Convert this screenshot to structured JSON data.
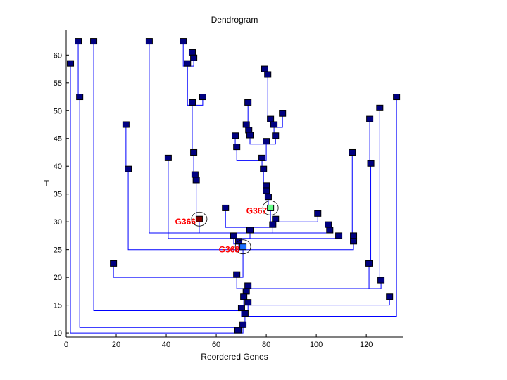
{
  "chart_data": {
    "type": "dendrogram",
    "title": "Dendrogram",
    "xlabel": "Reordered Genes",
    "ylabel": "T",
    "xlim": [
      0,
      134.6
    ],
    "ylim": [
      9.25,
      64.6
    ],
    "xticks": [
      0,
      20,
      40,
      60,
      80,
      100,
      120
    ],
    "yticks": [
      10,
      15,
      20,
      25,
      30,
      35,
      40,
      45,
      50,
      55,
      60
    ],
    "grid": false,
    "colors": {
      "line": "#0000ff",
      "node": "#000080",
      "node_border": "#000000",
      "highlight_label": "#ff0000"
    },
    "nodes": [
      [
        1,
        1.7,
        58.5
      ],
      [
        2,
        4.8,
        62.5
      ],
      [
        3,
        5.4,
        52.5
      ],
      [
        4,
        11,
        62.5
      ],
      [
        5,
        18.9,
        22.5
      ],
      [
        6,
        23.9,
        47.5
      ],
      [
        7,
        24.8,
        39.5
      ],
      [
        8,
        33.2,
        62.5
      ],
      [
        9,
        40.8,
        41.5
      ],
      [
        10,
        46.8,
        62.5
      ],
      [
        11,
        50.4,
        60.5
      ],
      [
        12,
        51,
        59.5
      ],
      [
        13,
        48.5,
        58.5
      ],
      [
        14,
        54.6,
        52.5
      ],
      [
        15,
        50.4,
        51.5
      ],
      [
        16,
        51,
        42.5
      ],
      [
        17,
        51.5,
        38.5
      ],
      [
        18,
        52,
        37.5
      ],
      [
        19,
        53.2,
        30.5
      ],
      [
        20,
        63.7,
        32.5
      ],
      [
        21,
        72.7,
        51.5
      ],
      [
        22,
        72,
        47.5
      ],
      [
        23,
        73,
        46.5
      ],
      [
        24,
        73.5,
        45.6
      ],
      [
        25,
        67.6,
        45.5
      ],
      [
        26,
        68.2,
        43.5
      ],
      [
        27,
        79.4,
        57.5
      ],
      [
        28,
        80.6,
        56.5
      ],
      [
        29,
        81.7,
        48.5
      ],
      [
        30,
        86.5,
        49.5
      ],
      [
        31,
        83.1,
        47.5
      ],
      [
        32,
        83.7,
        45.5
      ],
      [
        33,
        80,
        44.5
      ],
      [
        34,
        78.3,
        41.5
      ],
      [
        35,
        78.9,
        39.5
      ],
      [
        36,
        80,
        36.5
      ],
      [
        37,
        80,
        35.6
      ],
      [
        38,
        80.8,
        34.5
      ],
      [
        39,
        81.7,
        32.5
      ],
      [
        40,
        83.7,
        30.5
      ],
      [
        41,
        82.6,
        29.5
      ],
      [
        42,
        73.5,
        28.5
      ],
      [
        43,
        100.6,
        31.5
      ],
      [
        44,
        104.8,
        29.5
      ],
      [
        45,
        105.4,
        28.5
      ],
      [
        46,
        67,
        27.5
      ],
      [
        47,
        109,
        27.5
      ],
      [
        48,
        114.9,
        27.5
      ],
      [
        49,
        114.9,
        26.5
      ],
      [
        50,
        69,
        26.5
      ],
      [
        51,
        70.7,
        25.5
      ],
      [
        52,
        114.4,
        42.5
      ],
      [
        53,
        121.4,
        48.5
      ],
      [
        54,
        121.8,
        40.5
      ],
      [
        55,
        121.1,
        22.5
      ],
      [
        56,
        125.4,
        50.5
      ],
      [
        57,
        125.9,
        19.5
      ],
      [
        58,
        132.1,
        52.5
      ],
      [
        59,
        68.2,
        20.5
      ],
      [
        60,
        72.7,
        18.5
      ],
      [
        61,
        72,
        17.5
      ],
      [
        62,
        71,
        16.5
      ],
      [
        63,
        72.7,
        15.5
      ],
      [
        64,
        129.3,
        16.5
      ],
      [
        65,
        70.1,
        14.5
      ],
      [
        66,
        71.5,
        13.5
      ],
      [
        67,
        70.7,
        11.5
      ],
      [
        68,
        68.7,
        10.5
      ]
    ],
    "links": [
      [
        1,
        68
      ],
      [
        67,
        68
      ],
      [
        3,
        67
      ],
      [
        66,
        67
      ],
      [
        2,
        3
      ],
      [
        58,
        66
      ],
      [
        65,
        66
      ],
      [
        4,
        65
      ],
      [
        63,
        65
      ],
      [
        64,
        63
      ],
      [
        62,
        63
      ],
      [
        61,
        62
      ],
      [
        60,
        61
      ],
      [
        59,
        60
      ],
      [
        55,
        60
      ],
      [
        57,
        60
      ],
      [
        56,
        57
      ],
      [
        54,
        55
      ],
      [
        53,
        54
      ],
      [
        51,
        59
      ],
      [
        5,
        59
      ],
      [
        50,
        51
      ],
      [
        7,
        51
      ],
      [
        49,
        51
      ],
      [
        48,
        49
      ],
      [
        52,
        48
      ],
      [
        46,
        50
      ],
      [
        9,
        46
      ],
      [
        47,
        46
      ],
      [
        42,
        46
      ],
      [
        8,
        42
      ],
      [
        45,
        42
      ],
      [
        19,
        42
      ],
      [
        41,
        42
      ],
      [
        44,
        45
      ],
      [
        20,
        41
      ],
      [
        40,
        41
      ],
      [
        39,
        40
      ],
      [
        43,
        40
      ],
      [
        38,
        39
      ],
      [
        37,
        38
      ],
      [
        36,
        37
      ],
      [
        35,
        36
      ],
      [
        34,
        35
      ],
      [
        26,
        34
      ],
      [
        33,
        34
      ],
      [
        25,
        26
      ],
      [
        24,
        33
      ],
      [
        32,
        33
      ],
      [
        23,
        24
      ],
      [
        22,
        23
      ],
      [
        21,
        22
      ],
      [
        31,
        32
      ],
      [
        29,
        31
      ],
      [
        30,
        31
      ],
      [
        28,
        29
      ],
      [
        27,
        28
      ],
      [
        18,
        19
      ],
      [
        17,
        18
      ],
      [
        16,
        17
      ],
      [
        15,
        16
      ],
      [
        13,
        15
      ],
      [
        14,
        15
      ],
      [
        10,
        13
      ],
      [
        12,
        13
      ],
      [
        11,
        12
      ],
      [
        6,
        7
      ]
    ],
    "highlights": [
      {
        "node": 19,
        "label": "G366",
        "color": "#800000"
      },
      {
        "node": 39,
        "label": "G367",
        "color": "#66ff88"
      },
      {
        "node": 51,
        "label": "G368",
        "color": "#1a6cff"
      }
    ]
  }
}
